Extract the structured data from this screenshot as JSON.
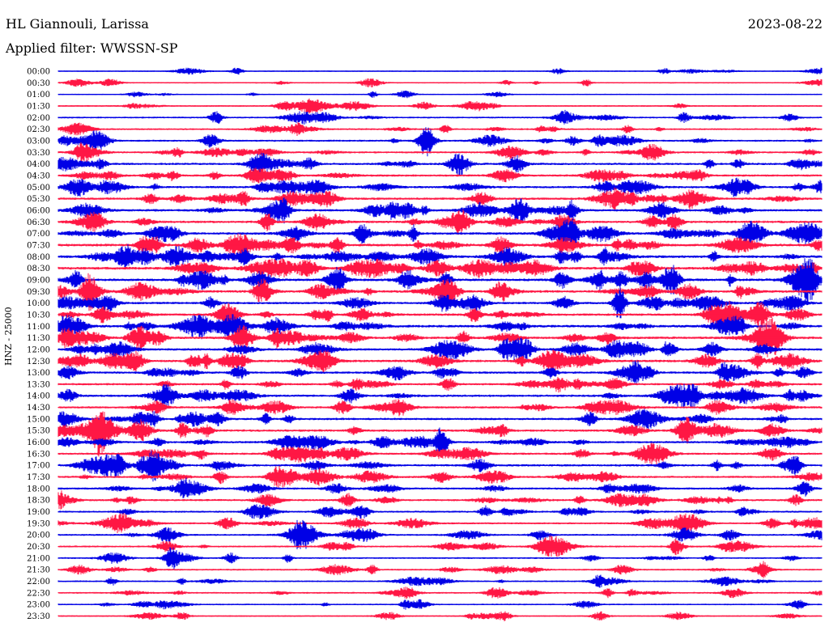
{
  "header": {
    "station": "HL Giannouli, Larissa",
    "filter": "Applied filter: WWSSN-SP",
    "date": "2023-08-22"
  },
  "colors": {
    "trace_even": "#0000e6",
    "trace_odd": "#ff1744"
  },
  "chart_data": {
    "type": "line",
    "title": "HL Giannouli, Larissa",
    "subtitle": "Applied filter: WWSSN-SP",
    "date": "2023-08-22",
    "ylabel": "HNZ - 25000",
    "xlabel": "",
    "series": [
      {
        "label": "00:00",
        "activity": 0.15
      },
      {
        "label": "00:30",
        "activity": 0.2
      },
      {
        "label": "01:00",
        "activity": 0.15
      },
      {
        "label": "01:30",
        "activity": 0.3
      },
      {
        "label": "02:00",
        "activity": 0.4
      },
      {
        "label": "02:30",
        "activity": 0.45
      },
      {
        "label": "03:00",
        "activity": 0.5
      },
      {
        "label": "03:30",
        "activity": 0.55
      },
      {
        "label": "04:00",
        "activity": 0.65
      },
      {
        "label": "04:30",
        "activity": 0.65
      },
      {
        "label": "05:00",
        "activity": 0.7
      },
      {
        "label": "05:30",
        "activity": 0.7
      },
      {
        "label": "06:00",
        "activity": 0.75
      },
      {
        "label": "06:30",
        "activity": 0.75
      },
      {
        "label": "07:00",
        "activity": 0.8
      },
      {
        "label": "07:30",
        "activity": 0.85
      },
      {
        "label": "08:00",
        "activity": 0.9
      },
      {
        "label": "08:30",
        "activity": 0.9
      },
      {
        "label": "09:00",
        "activity": 0.85
      },
      {
        "label": "09:30",
        "activity": 0.8
      },
      {
        "label": "10:00",
        "activity": 0.7
      },
      {
        "label": "10:30",
        "activity": 0.75
      },
      {
        "label": "11:00",
        "activity": 0.85
      },
      {
        "label": "11:30",
        "activity": 0.8
      },
      {
        "label": "12:00",
        "activity": 0.75
      },
      {
        "label": "12:30",
        "activity": 0.8
      },
      {
        "label": "13:00",
        "activity": 0.7
      },
      {
        "label": "13:30",
        "activity": 0.65
      },
      {
        "label": "14:00",
        "activity": 0.7
      },
      {
        "label": "14:30",
        "activity": 0.65
      },
      {
        "label": "15:00",
        "activity": 0.7
      },
      {
        "label": "15:30",
        "activity": 0.7
      },
      {
        "label": "16:00",
        "activity": 0.65
      },
      {
        "label": "16:30",
        "activity": 0.6
      },
      {
        "label": "17:00",
        "activity": 0.7
      },
      {
        "label": "17:30",
        "activity": 0.6
      },
      {
        "label": "18:00",
        "activity": 0.6
      },
      {
        "label": "18:30",
        "activity": 0.6
      },
      {
        "label": "19:00",
        "activity": 0.5
      },
      {
        "label": "19:30",
        "activity": 0.5
      },
      {
        "label": "20:00",
        "activity": 0.5
      },
      {
        "label": "20:30",
        "activity": 0.45
      },
      {
        "label": "21:00",
        "activity": 0.4
      },
      {
        "label": "21:30",
        "activity": 0.4
      },
      {
        "label": "22:00",
        "activity": 0.35
      },
      {
        "label": "22:30",
        "activity": 0.4
      },
      {
        "label": "23:00",
        "activity": 0.3
      },
      {
        "label": "23:30",
        "activity": 0.25
      }
    ]
  }
}
